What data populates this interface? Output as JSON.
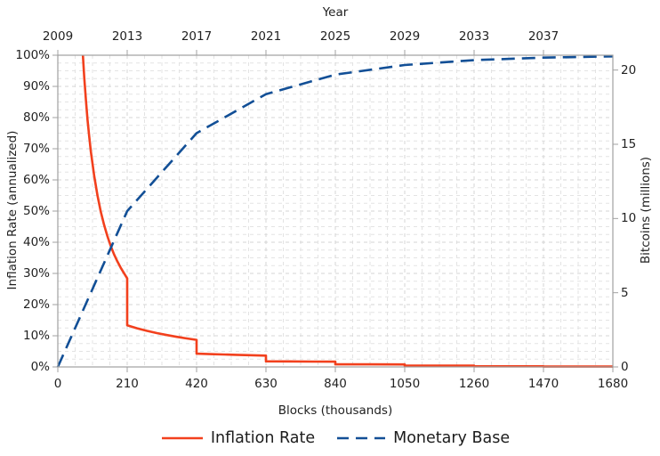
{
  "chart_data": {
    "type": "line",
    "title": "",
    "top_axis": {
      "title": "Year",
      "tick_labels": [
        "2009",
        "2013",
        "2017",
        "2021",
        "2025",
        "2029",
        "2033",
        "2037"
      ],
      "tick_positions": [
        0,
        210,
        420,
        630,
        840,
        1050,
        1260,
        1470
      ]
    },
    "x_axis": {
      "title": "Blocks (thousands)",
      "tick_labels": [
        "0",
        "210",
        "420",
        "630",
        "840",
        "1050",
        "1260",
        "1470",
        "1680"
      ],
      "tick_values": [
        0,
        210,
        420,
        630,
        840,
        1050,
        1260,
        1470,
        1680
      ],
      "range": [
        0,
        1680
      ]
    },
    "y_axis_left": {
      "title": "Inflation Rate (annualized)",
      "tick_labels": [
        "0%",
        "10%",
        "20%",
        "30%",
        "40%",
        "50%",
        "60%",
        "70%",
        "80%",
        "90%",
        "100%"
      ],
      "tick_values": [
        0,
        10,
        20,
        30,
        40,
        50,
        60,
        70,
        80,
        90,
        100
      ],
      "range": [
        0,
        100
      ]
    },
    "y_axis_right": {
      "title": "Bitcoins (millions)",
      "tick_labels": [
        "0",
        "5",
        "10",
        "15",
        "20"
      ],
      "tick_values": [
        0,
        5,
        10,
        15,
        20
      ],
      "range": [
        0,
        21
      ]
    },
    "grid": {
      "major_color": "#d4d4d4",
      "minor_color": "#e3e3e3",
      "x_minor_step": 52.5,
      "y_minor_step": 2.5,
      "axis_color": "#a0a0a0"
    },
    "series": [
      {
        "name": "Inflation Rate",
        "color": "#f2401d",
        "dash": "solid",
        "axis": "left",
        "points": [
          [
            75.8,
            100
          ],
          [
            80,
            92.9
          ],
          [
            85,
            85.6
          ],
          [
            90,
            79.3
          ],
          [
            95,
            73.9
          ],
          [
            100,
            69.2
          ],
          [
            110,
            61.3
          ],
          [
            120,
            55.0
          ],
          [
            130,
            49.8
          ],
          [
            140,
            45.6
          ],
          [
            150,
            42.0
          ],
          [
            160,
            38.9
          ],
          [
            170,
            36.2
          ],
          [
            180,
            33.9
          ],
          [
            190,
            31.9
          ],
          [
            200,
            30.1
          ],
          [
            210,
            28.4
          ],
          [
            210,
            13.33
          ],
          [
            240,
            12.39
          ],
          [
            270,
            11.57
          ],
          [
            300,
            10.86
          ],
          [
            330,
            10.22
          ],
          [
            360,
            9.66
          ],
          [
            390,
            9.15
          ],
          [
            420,
            8.7
          ],
          [
            420,
            4.26
          ],
          [
            460,
            4.12
          ],
          [
            500,
            3.99
          ],
          [
            540,
            3.88
          ],
          [
            580,
            3.77
          ],
          [
            630,
            3.64
          ],
          [
            630,
            1.8
          ],
          [
            700,
            1.76
          ],
          [
            770,
            1.72
          ],
          [
            840,
            1.68
          ],
          [
            840,
            0.84
          ],
          [
            945,
            0.82
          ],
          [
            1050,
            0.81
          ],
          [
            1050,
            0.4
          ],
          [
            1155,
            0.4
          ],
          [
            1260,
            0.4
          ],
          [
            1260,
            0.2
          ],
          [
            1470,
            0.2
          ],
          [
            1470,
            0.1
          ],
          [
            1680,
            0.1
          ]
        ]
      },
      {
        "name": "Monetary Base",
        "color": "#124f96",
        "dash": "dashed",
        "axis": "right",
        "points": [
          [
            0,
            0
          ],
          [
            210,
            10.5
          ],
          [
            420,
            15.75
          ],
          [
            630,
            18.38
          ],
          [
            840,
            19.69
          ],
          [
            1050,
            20.34
          ],
          [
            1260,
            20.67
          ],
          [
            1470,
            20.84
          ],
          [
            1680,
            20.92
          ]
        ]
      }
    ]
  }
}
